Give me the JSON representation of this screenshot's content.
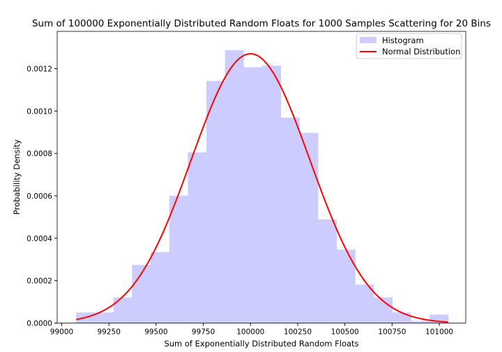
{
  "chart_data": {
    "type": "bar",
    "title": "Sum of 100000 Exponentially Distributed Random Floats for 1000 Samples Scattering for 20 Bins",
    "xlabel": "Sum of Exponentially Distributed Random Floats",
    "ylabel": "Probability Density",
    "xlim": [
      98976,
      101140
    ],
    "ylim": [
      0,
      0.001376
    ],
    "xticks": [
      99000,
      99250,
      99500,
      99750,
      100000,
      100250,
      100500,
      100750,
      101000
    ],
    "yticks": [
      "0.0000",
      "0.0002",
      "0.0004",
      "0.0006",
      "0.0008",
      "0.0010",
      "0.0012"
    ],
    "bin_start": 99077,
    "bin_width": 98.5,
    "histogram": {
      "name": "Histogram",
      "color": "#ccccff",
      "values": [
        5e-05,
        5e-05,
        0.000121,
        0.000274,
        0.000335,
        0.000601,
        0.000805,
        0.001142,
        0.001287,
        0.001207,
        0.001214,
        0.000969,
        0.000897,
        0.000489,
        0.000346,
        0.000182,
        0.000121,
        5e-05,
        1e-05,
        4e-05
      ]
    },
    "normal": {
      "name": "Normal Distribution",
      "color": "#ff0000",
      "mean": 100000,
      "std": 314,
      "x_range": [
        99077,
        101046
      ]
    },
    "legend": "top-right",
    "grid": false
  }
}
